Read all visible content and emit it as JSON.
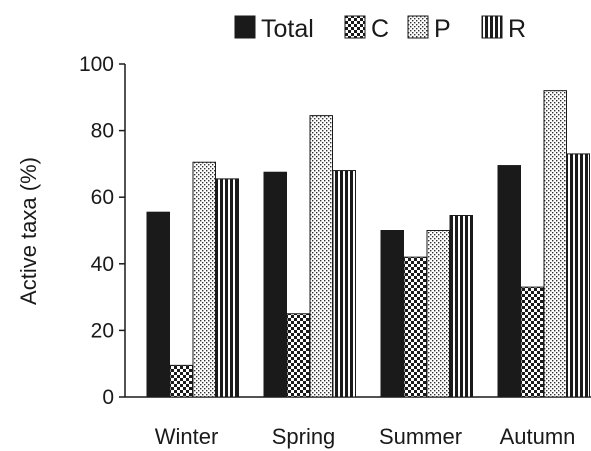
{
  "chart_data": {
    "type": "bar",
    "ylabel": "Active taxa (%)",
    "xlabel": "",
    "ylim": [
      0,
      100
    ],
    "yticks": [
      0,
      20,
      40,
      60,
      80,
      100
    ],
    "categories": [
      "Winter",
      "Spring",
      "Summer",
      "Autumn"
    ],
    "legend_position": "top",
    "grid": false,
    "series": [
      {
        "name": "Total",
        "pattern": "solid",
        "values": [
          55.5,
          67.5,
          50,
          69.5
        ]
      },
      {
        "name": "C",
        "pattern": "checker",
        "values": [
          9.5,
          25,
          42,
          33
        ]
      },
      {
        "name": "P",
        "pattern": "dots",
        "values": [
          70.5,
          84.5,
          50,
          92
        ]
      },
      {
        "name": "R",
        "pattern": "vertical-stripes",
        "values": [
          65.5,
          68,
          54.5,
          73
        ]
      }
    ]
  }
}
